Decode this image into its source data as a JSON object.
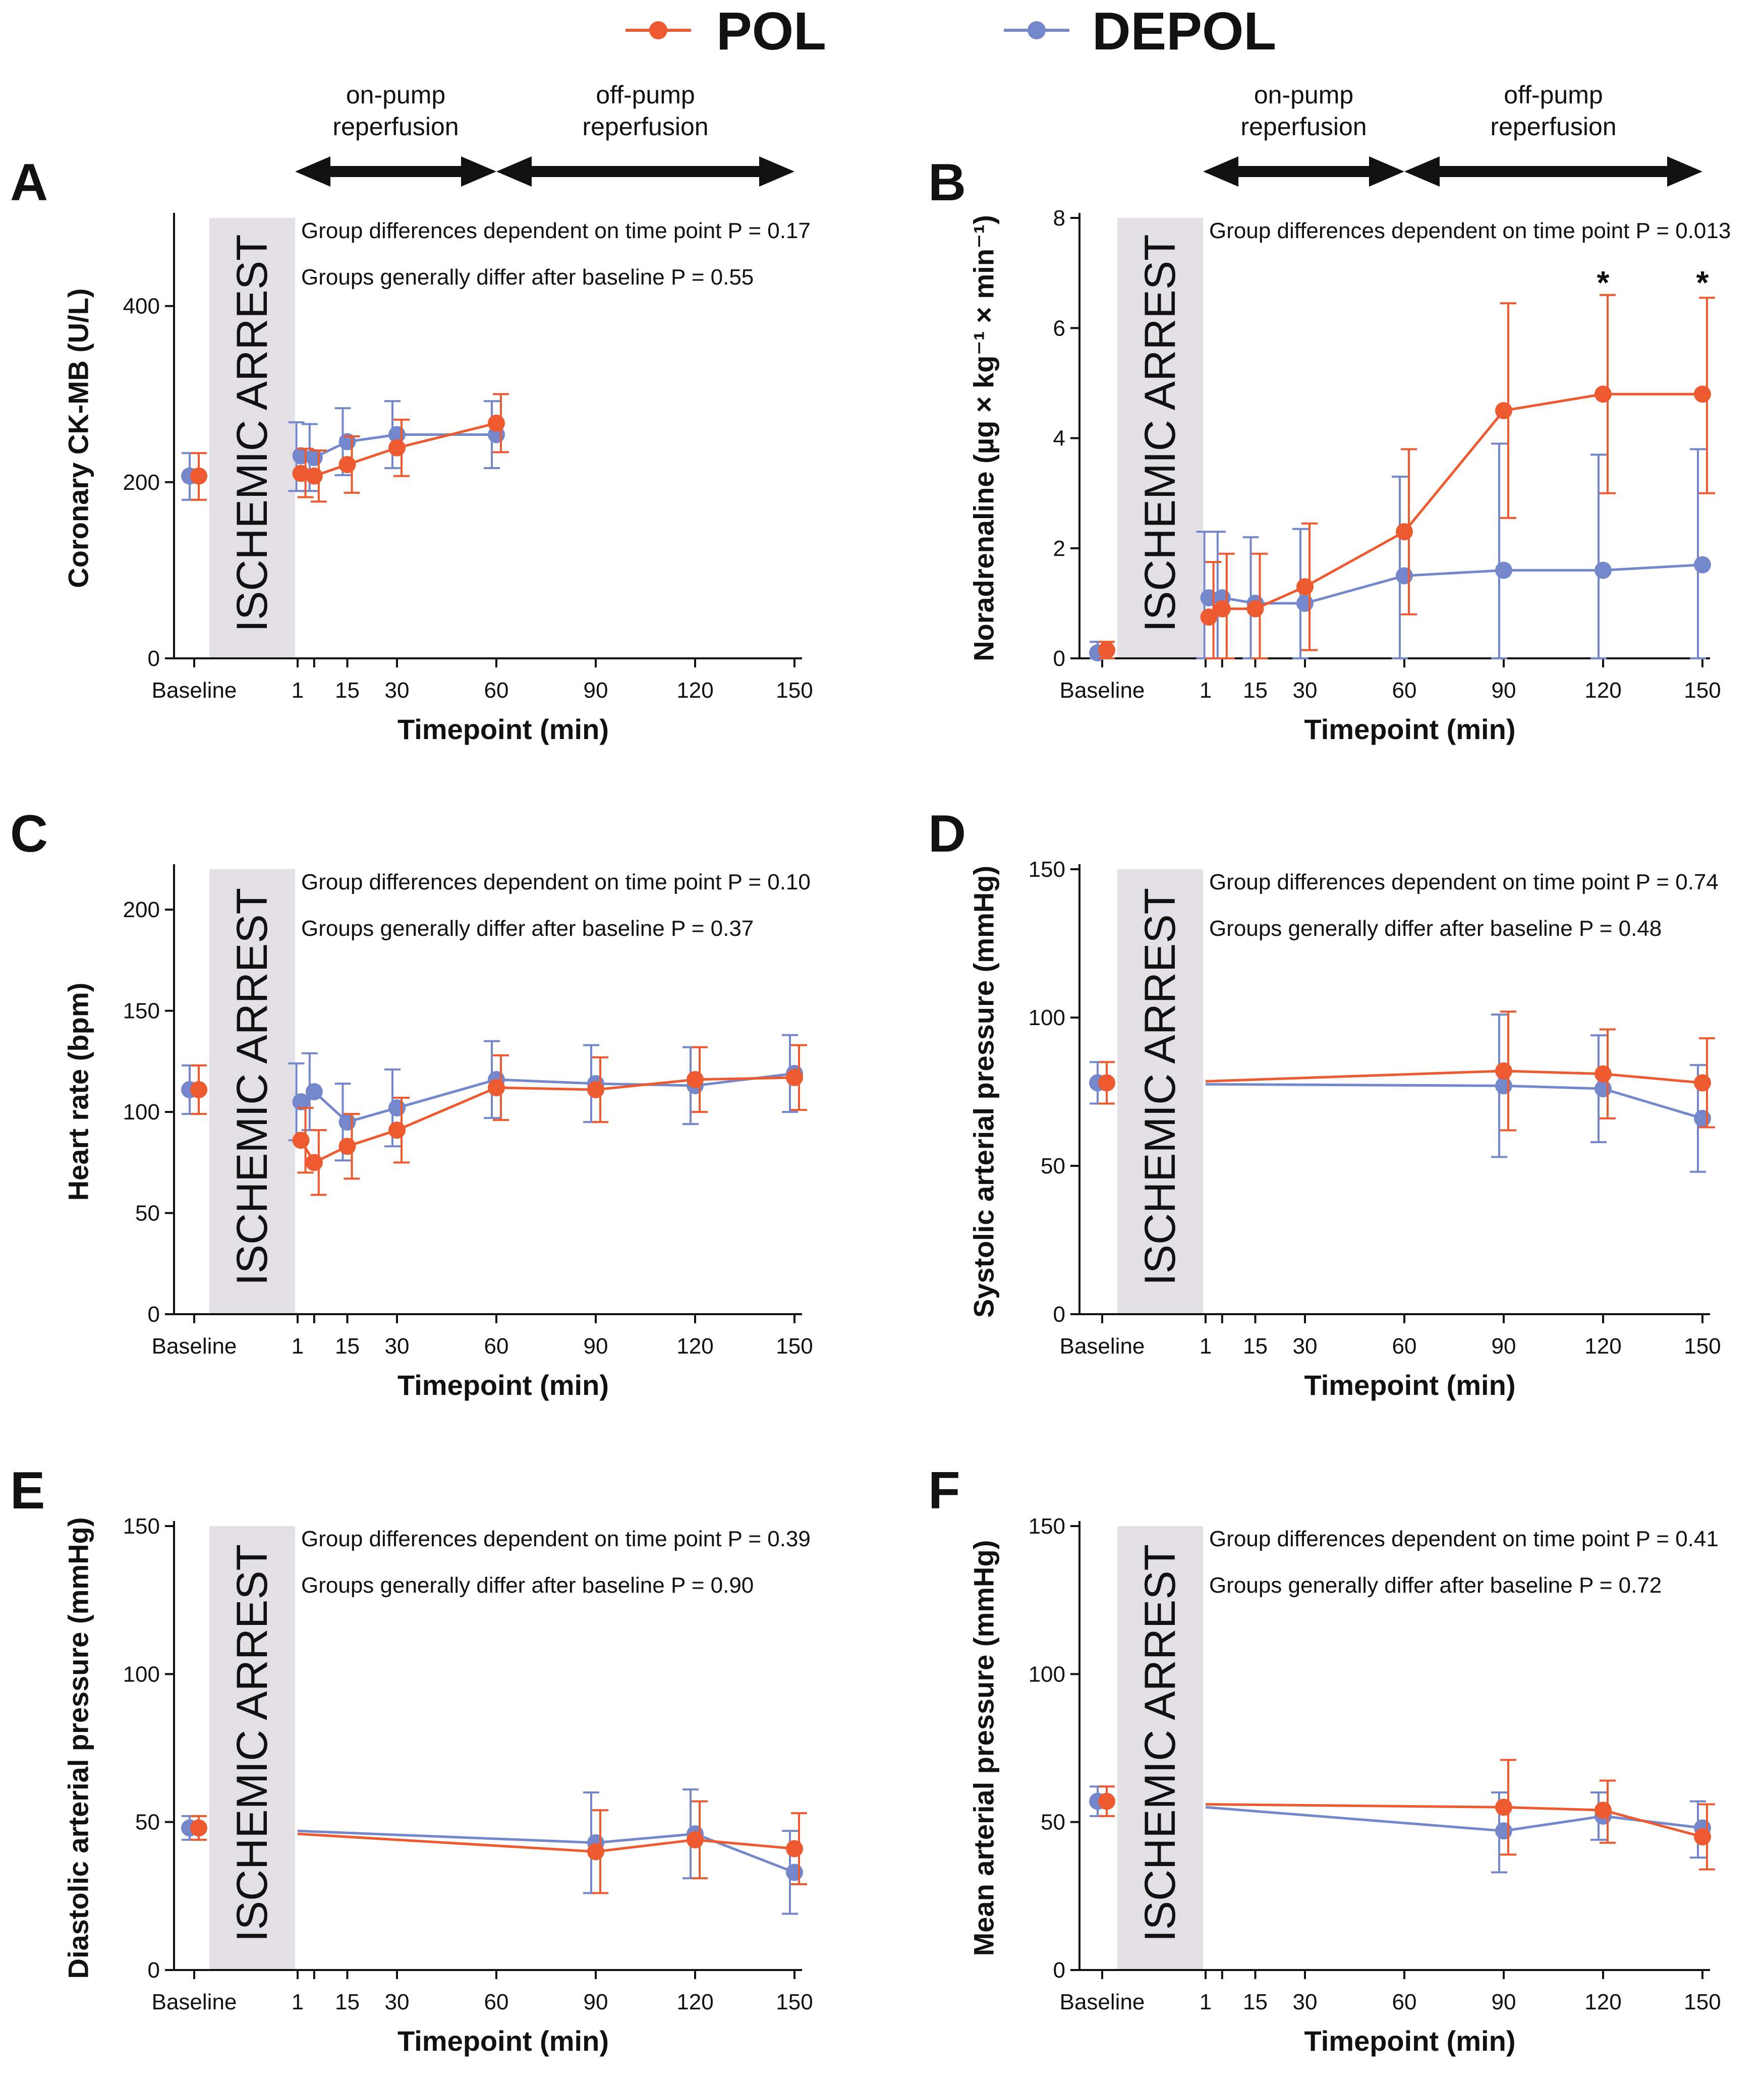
{
  "legend": [
    {
      "name": "POL",
      "color": "#EE5A2F"
    },
    {
      "name": "DEPOL",
      "color": "#7487CB"
    }
  ],
  "phases": {
    "on_pump": [
      "on-pump",
      "reperfusion"
    ],
    "off_pump": [
      "off-pump",
      "reperfusion"
    ]
  },
  "arrest_label": "ISCHEMIC ARREST",
  "chart_data": [
    {
      "letter": "A",
      "type": "line",
      "show_phases": true,
      "ylabel": "Coronary CK-MB (U/L)",
      "xlabel": "Timepoint (min)",
      "ylim": [
        0,
        500
      ],
      "yticks": [
        0,
        200,
        400
      ],
      "xticks": [
        "Baseline",
        "1",
        "15",
        "30",
        "60",
        "90",
        "120",
        "150"
      ],
      "stats": [
        "Group differences dependent on time point P = 0.17",
        "Groups generally differ after baseline P = 0.55"
      ],
      "series": [
        {
          "name": "POL",
          "points": [
            {
              "x": "Baseline",
              "y": 207,
              "lo": 180,
              "hi": 233
            },
            {
              "x": 1,
              "y": 210,
              "lo": 183,
              "hi": 238
            },
            {
              "x": 5,
              "y": 207,
              "lo": 178,
              "hi": 236
            },
            {
              "x": 15,
              "y": 220,
              "lo": 188,
              "hi": 252
            },
            {
              "x": 30,
              "y": 239,
              "lo": 207,
              "hi": 271
            },
            {
              "x": 60,
              "y": 267,
              "lo": 234,
              "hi": 300
            }
          ]
        },
        {
          "name": "DEPOL",
          "points": [
            {
              "x": "Baseline",
              "y": 207,
              "lo": 180,
              "hi": 233
            },
            {
              "x": 1,
              "y": 230,
              "lo": 190,
              "hi": 268
            },
            {
              "x": 5,
              "y": 228,
              "lo": 190,
              "hi": 266
            },
            {
              "x": 15,
              "y": 246,
              "lo": 208,
              "hi": 284
            },
            {
              "x": 30,
              "y": 254,
              "lo": 216,
              "hi": 292
            },
            {
              "x": 60,
              "y": 254,
              "lo": 216,
              "hi": 292
            }
          ]
        }
      ]
    },
    {
      "letter": "B",
      "type": "line",
      "show_phases": true,
      "ylabel": "Noradrenaline (µg × kg⁻¹ × min⁻¹)",
      "xlabel": "Timepoint (min)",
      "ylim": [
        0,
        8
      ],
      "yticks": [
        0,
        2,
        4,
        6,
        8
      ],
      "xticks": [
        "Baseline",
        "1",
        "15",
        "30",
        "60",
        "90",
        "120",
        "150"
      ],
      "stats": [
        "Group differences dependent on time point P = 0.013"
      ],
      "significance": [
        {
          "x": 120,
          "label": "*"
        },
        {
          "x": 150,
          "label": "*"
        }
      ],
      "series": [
        {
          "name": "POL",
          "points": [
            {
              "x": "Baseline",
              "y": 0.15,
              "lo": 0,
              "hi": 0.3
            },
            {
              "x": 1,
              "y": 0.75,
              "lo": 0,
              "hi": 1.75
            },
            {
              "x": 5,
              "y": 0.9,
              "lo": 0,
              "hi": 1.9
            },
            {
              "x": 15,
              "y": 0.9,
              "lo": 0,
              "hi": 1.9
            },
            {
              "x": 30,
              "y": 1.3,
              "lo": 0.15,
              "hi": 2.45
            },
            {
              "x": 60,
              "y": 2.3,
              "lo": 0.8,
              "hi": 3.8
            },
            {
              "x": 90,
              "y": 4.5,
              "lo": 2.55,
              "hi": 6.45
            },
            {
              "x": 120,
              "y": 4.8,
              "lo": 3.0,
              "hi": 6.6
            },
            {
              "x": 150,
              "y": 4.8,
              "lo": 3.0,
              "hi": 6.55
            }
          ]
        },
        {
          "name": "DEPOL",
          "points": [
            {
              "x": "Baseline",
              "y": 0.1,
              "lo": 0,
              "hi": 0.3
            },
            {
              "x": 1,
              "y": 1.1,
              "lo": 0,
              "hi": 2.3
            },
            {
              "x": 5,
              "y": 1.1,
              "lo": 0,
              "hi": 2.3
            },
            {
              "x": 15,
              "y": 1.0,
              "lo": 0,
              "hi": 2.2
            },
            {
              "x": 30,
              "y": 1.0,
              "lo": 0,
              "hi": 2.35
            },
            {
              "x": 60,
              "y": 1.5,
              "lo": 0,
              "hi": 3.3
            },
            {
              "x": 90,
              "y": 1.6,
              "lo": 0,
              "hi": 3.9
            },
            {
              "x": 120,
              "y": 1.6,
              "lo": 0,
              "hi": 3.7
            },
            {
              "x": 150,
              "y": 1.7,
              "lo": 0,
              "hi": 3.8
            }
          ]
        }
      ]
    },
    {
      "letter": "C",
      "type": "line",
      "show_phases": false,
      "ylabel": "Heart rate (bpm)",
      "xlabel": "Timepoint (min)",
      "ylim": [
        0,
        220
      ],
      "yticks": [
        0,
        50,
        100,
        150,
        200
      ],
      "xticks": [
        "Baseline",
        "1",
        "15",
        "30",
        "60",
        "90",
        "120",
        "150"
      ],
      "stats": [
        "Group differences dependent on time point P = 0.10",
        "Groups generally differ after baseline P = 0.37"
      ],
      "series": [
        {
          "name": "POL",
          "points": [
            {
              "x": "Baseline",
              "y": 111,
              "lo": 99,
              "hi": 123
            },
            {
              "x": 1,
              "y": 86,
              "lo": 70,
              "hi": 102
            },
            {
              "x": 5,
              "y": 75,
              "lo": 59,
              "hi": 91
            },
            {
              "x": 15,
              "y": 83,
              "lo": 67,
              "hi": 99
            },
            {
              "x": 30,
              "y": 91,
              "lo": 75,
              "hi": 107
            },
            {
              "x": 60,
              "y": 112,
              "lo": 96,
              "hi": 128
            },
            {
              "x": 90,
              "y": 111,
              "lo": 95,
              "hi": 127
            },
            {
              "x": 120,
              "y": 116,
              "lo": 100,
              "hi": 132
            },
            {
              "x": 150,
              "y": 117,
              "lo": 101,
              "hi": 133
            }
          ]
        },
        {
          "name": "DEPOL",
          "points": [
            {
              "x": "Baseline",
              "y": 111,
              "lo": 99,
              "hi": 123
            },
            {
              "x": 1,
              "y": 105,
              "lo": 86,
              "hi": 124
            },
            {
              "x": 5,
              "y": 110,
              "lo": 91,
              "hi": 129
            },
            {
              "x": 15,
              "y": 95,
              "lo": 76,
              "hi": 114
            },
            {
              "x": 30,
              "y": 102,
              "lo": 83,
              "hi": 121
            },
            {
              "x": 60,
              "y": 116,
              "lo": 97,
              "hi": 135
            },
            {
              "x": 90,
              "y": 114,
              "lo": 95,
              "hi": 133
            },
            {
              "x": 120,
              "y": 113,
              "lo": 94,
              "hi": 132
            },
            {
              "x": 150,
              "y": 119,
              "lo": 100,
              "hi": 138
            }
          ]
        }
      ]
    },
    {
      "letter": "D",
      "type": "line",
      "show_phases": false,
      "ylabel": "Systolic arterial pressure (mmHg)",
      "xlabel": "Timepoint (min)",
      "ylim": [
        0,
        150
      ],
      "yticks": [
        0,
        50,
        100,
        150
      ],
      "xticks": [
        "Baseline",
        "1",
        "15",
        "30",
        "60",
        "90",
        "120",
        "150"
      ],
      "stats": [
        "Group differences dependent on time point P = 0.74",
        "Groups generally differ after baseline P = 0.48"
      ],
      "series": [
        {
          "name": "POL",
          "points": [
            {
              "x": "Baseline",
              "y": 78,
              "lo": 71,
              "hi": 85
            },
            {
              "x": 0,
              "y": 78.5
            },
            {
              "x": 90,
              "y": 82,
              "lo": 62,
              "hi": 102
            },
            {
              "x": 120,
              "y": 81,
              "lo": 66,
              "hi": 96
            },
            {
              "x": 150,
              "y": 78,
              "lo": 63,
              "hi": 93
            }
          ]
        },
        {
          "name": "DEPOL",
          "points": [
            {
              "x": "Baseline",
              "y": 78,
              "lo": 71,
              "hi": 85
            },
            {
              "x": 0,
              "y": 77.5
            },
            {
              "x": 90,
              "y": 77,
              "lo": 53,
              "hi": 101
            },
            {
              "x": 120,
              "y": 76,
              "lo": 58,
              "hi": 94
            },
            {
              "x": 150,
              "y": 66,
              "lo": 48,
              "hi": 84
            }
          ]
        }
      ]
    },
    {
      "letter": "E",
      "type": "line",
      "show_phases": false,
      "ylabel": "Diastolic arterial pressure (mmHg)",
      "xlabel": "Timepoint (min)",
      "ylim": [
        0,
        150
      ],
      "yticks": [
        0,
        50,
        100,
        150
      ],
      "xticks": [
        "Baseline",
        "1",
        "15",
        "30",
        "60",
        "90",
        "120",
        "150"
      ],
      "stats": [
        "Group differences dependent on time point P = 0.39",
        "Groups generally differ after baseline P = 0.90"
      ],
      "series": [
        {
          "name": "POL",
          "points": [
            {
              "x": "Baseline",
              "y": 48,
              "lo": 44,
              "hi": 52
            },
            {
              "x": 0,
              "y": 46
            },
            {
              "x": 90,
              "y": 40,
              "lo": 26,
              "hi": 54
            },
            {
              "x": 120,
              "y": 44,
              "lo": 31,
              "hi": 57
            },
            {
              "x": 150,
              "y": 41,
              "lo": 29,
              "hi": 53
            }
          ]
        },
        {
          "name": "DEPOL",
          "points": [
            {
              "x": "Baseline",
              "y": 48,
              "lo": 44,
              "hi": 52
            },
            {
              "x": 0,
              "y": 47
            },
            {
              "x": 90,
              "y": 43,
              "lo": 26,
              "hi": 60
            },
            {
              "x": 120,
              "y": 46,
              "lo": 31,
              "hi": 61
            },
            {
              "x": 150,
              "y": 33,
              "lo": 19,
              "hi": 47
            }
          ]
        }
      ]
    },
    {
      "letter": "F",
      "type": "line",
      "show_phases": false,
      "ylabel": "Mean arterial pressure (mmHg)",
      "xlabel": "Timepoint (min)",
      "ylim": [
        0,
        150
      ],
      "yticks": [
        0,
        50,
        100,
        150
      ],
      "xticks": [
        "Baseline",
        "1",
        "15",
        "30",
        "60",
        "90",
        "120",
        "150"
      ],
      "stats": [
        "Group differences dependent on time point P = 0.41",
        "Groups generally differ after baseline P = 0.72"
      ],
      "series": [
        {
          "name": "POL",
          "points": [
            {
              "x": "Baseline",
              "y": 57,
              "lo": 52,
              "hi": 62
            },
            {
              "x": 0,
              "y": 56
            },
            {
              "x": 90,
              "y": 55,
              "lo": 39,
              "hi": 71
            },
            {
              "x": 120,
              "y": 54,
              "lo": 43,
              "hi": 64
            },
            {
              "x": 150,
              "y": 45,
              "lo": 34,
              "hi": 56
            }
          ]
        },
        {
          "name": "DEPOL",
          "points": [
            {
              "x": "Baseline",
              "y": 57,
              "lo": 52,
              "hi": 62
            },
            {
              "x": 0,
              "y": 55
            },
            {
              "x": 90,
              "y": 47,
              "lo": 33,
              "hi": 60
            },
            {
              "x": 120,
              "y": 52,
              "lo": 44,
              "hi": 60
            },
            {
              "x": 150,
              "y": 48,
              "lo": 38,
              "hi": 57
            }
          ]
        }
      ]
    }
  ]
}
